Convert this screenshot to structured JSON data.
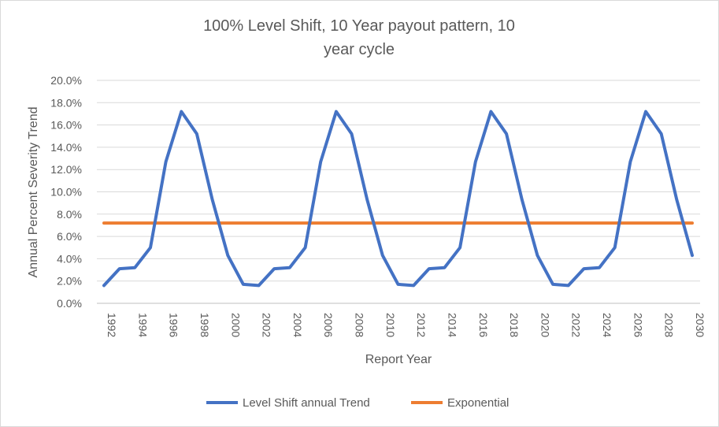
{
  "chart_data": {
    "type": "line",
    "title_lines": [
      "100% Level Shift, 10 Year payout pattern, 10",
      "year cycle"
    ],
    "xlabel": "Report Year",
    "ylabel": "Annual Percent Severity Trend",
    "ylim": [
      0,
      20
    ],
    "xlim": [
      1992,
      2030
    ],
    "y_ticks": [
      "0.0%",
      "2.0%",
      "4.0%",
      "6.0%",
      "8.0%",
      "10.0%",
      "12.0%",
      "14.0%",
      "16.0%",
      "18.0%",
      "20.0%"
    ],
    "x_ticks": [
      "1992",
      "1994",
      "1996",
      "1998",
      "2000",
      "2002",
      "2004",
      "2006",
      "2008",
      "2010",
      "2012",
      "2014",
      "2016",
      "2018",
      "2020",
      "2022",
      "2024",
      "2026",
      "2028",
      "2030"
    ],
    "grid": true,
    "legend_position": "bottom",
    "x": [
      1992,
      1993,
      1994,
      1995,
      1996,
      1997,
      1998,
      1999,
      2000,
      2001,
      2002,
      2003,
      2004,
      2005,
      2006,
      2007,
      2008,
      2009,
      2010,
      2011,
      2012,
      2013,
      2014,
      2015,
      2016,
      2017,
      2018,
      2019,
      2020,
      2021,
      2022,
      2023,
      2024,
      2025,
      2026,
      2027,
      2028,
      2029,
      2030
    ],
    "series": [
      {
        "name": "Level Shift annual Trend",
        "color": "#4472c4",
        "values": [
          1.6,
          3.1,
          3.2,
          5.0,
          12.7,
          17.2,
          15.2,
          9.3,
          4.3,
          1.7,
          1.6,
          3.1,
          3.2,
          5.0,
          12.7,
          17.2,
          15.2,
          9.3,
          4.3,
          1.7,
          1.6,
          3.1,
          3.2,
          5.0,
          12.7,
          17.2,
          15.2,
          9.3,
          4.3,
          1.7,
          1.6,
          3.1,
          3.2,
          5.0,
          12.7,
          17.2,
          15.2,
          9.3,
          4.3
        ]
      },
      {
        "name": "Exponential",
        "color": "#ed7d31",
        "values": [
          7.2,
          7.2,
          7.2,
          7.2,
          7.2,
          7.2,
          7.2,
          7.2,
          7.2,
          7.2,
          7.2,
          7.2,
          7.2,
          7.2,
          7.2,
          7.2,
          7.2,
          7.2,
          7.2,
          7.2,
          7.2,
          7.2,
          7.2,
          7.2,
          7.2,
          7.2,
          7.2,
          7.2,
          7.2,
          7.2,
          7.2,
          7.2,
          7.2,
          7.2,
          7.2,
          7.2,
          7.2,
          7.2,
          7.2
        ]
      }
    ]
  }
}
